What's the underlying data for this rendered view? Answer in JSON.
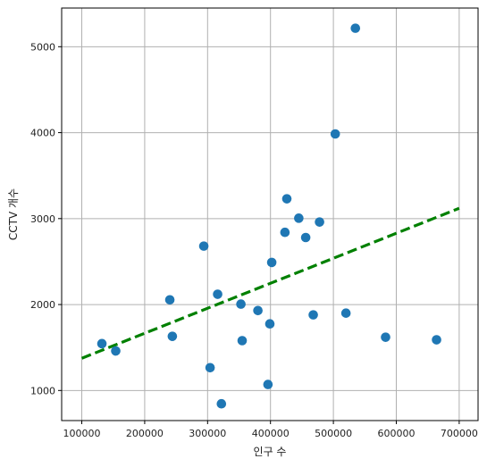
{
  "chart_data": {
    "type": "scatter",
    "title": "",
    "xlabel": "인구 수",
    "ylabel": "CCTV 개수",
    "xlim": [
      68000,
      730000
    ],
    "ylim": [
      650,
      5450
    ],
    "xticks": [
      100000,
      200000,
      300000,
      400000,
      500000,
      600000,
      700000
    ],
    "yticks": [
      1000,
      2000,
      3000,
      4000,
      5000
    ],
    "grid": true,
    "points": [
      {
        "x": 132000,
        "y": 1545
      },
      {
        "x": 154000,
        "y": 1460
      },
      {
        "x": 240000,
        "y": 2055
      },
      {
        "x": 244000,
        "y": 1630
      },
      {
        "x": 294000,
        "y": 2680
      },
      {
        "x": 304000,
        "y": 1265
      },
      {
        "x": 316000,
        "y": 2120
      },
      {
        "x": 322000,
        "y": 845
      },
      {
        "x": 353000,
        "y": 2005
      },
      {
        "x": 355000,
        "y": 1580
      },
      {
        "x": 380000,
        "y": 1930
      },
      {
        "x": 396000,
        "y": 1070
      },
      {
        "x": 399000,
        "y": 1775
      },
      {
        "x": 402000,
        "y": 2490
      },
      {
        "x": 423000,
        "y": 2840
      },
      {
        "x": 426000,
        "y": 3230
      },
      {
        "x": 445000,
        "y": 3005
      },
      {
        "x": 456000,
        "y": 2780
      },
      {
        "x": 468000,
        "y": 1880
      },
      {
        "x": 478000,
        "y": 2960
      },
      {
        "x": 503000,
        "y": 3985
      },
      {
        "x": 520000,
        "y": 1900
      },
      {
        "x": 535000,
        "y": 5215
      },
      {
        "x": 583000,
        "y": 1620
      },
      {
        "x": 664000,
        "y": 1590
      }
    ],
    "trendline": {
      "x": [
        100000,
        700000
      ],
      "y": [
        1375,
        3120
      ],
      "style": "dashed",
      "color": "#008000"
    },
    "colors": {
      "points": "#1f77b4",
      "grid": "#b0b0b0",
      "axes": "#000000"
    }
  }
}
